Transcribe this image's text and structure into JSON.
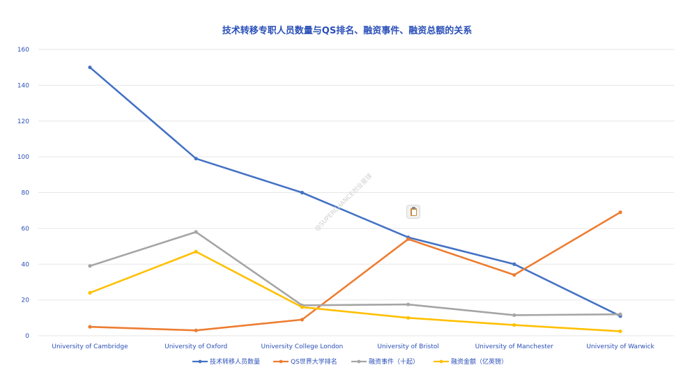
{
  "chart_data": {
    "type": "line",
    "title": "技术转移专职人员数量与QS排名、融资事件、融资总额的关系",
    "categories": [
      "University of Cambridge",
      "University of Oxford",
      "University College London",
      "University of Bristol",
      "University of Manchester",
      "University of Warwick"
    ],
    "ylim": [
      0,
      160
    ],
    "yticks": [
      0,
      20,
      40,
      60,
      80,
      100,
      120,
      140,
      160
    ],
    "grid": true,
    "legend_position": "bottom",
    "series": [
      {
        "name": "技术转移人员数量",
        "color": "#4472c4",
        "values": [
          150,
          99,
          80,
          55,
          40,
          11
        ]
      },
      {
        "name": "QS世界大学排名",
        "color": "#ed7d31",
        "values": [
          5,
          3,
          9,
          54,
          34,
          69
        ]
      },
      {
        "name": "融资事件（十起）",
        "color": "#a5a5a5",
        "values": [
          39,
          58,
          17,
          17.5,
          11.5,
          12
        ]
      },
      {
        "name": "融资金额（亿英镑）",
        "color": "#ffc000",
        "values": [
          24,
          47,
          16,
          10,
          6,
          2.5
        ]
      }
    ]
  },
  "watermark": "@SUPERCHANCE创业星球",
  "clipboard_icon": "clipboard-icon"
}
